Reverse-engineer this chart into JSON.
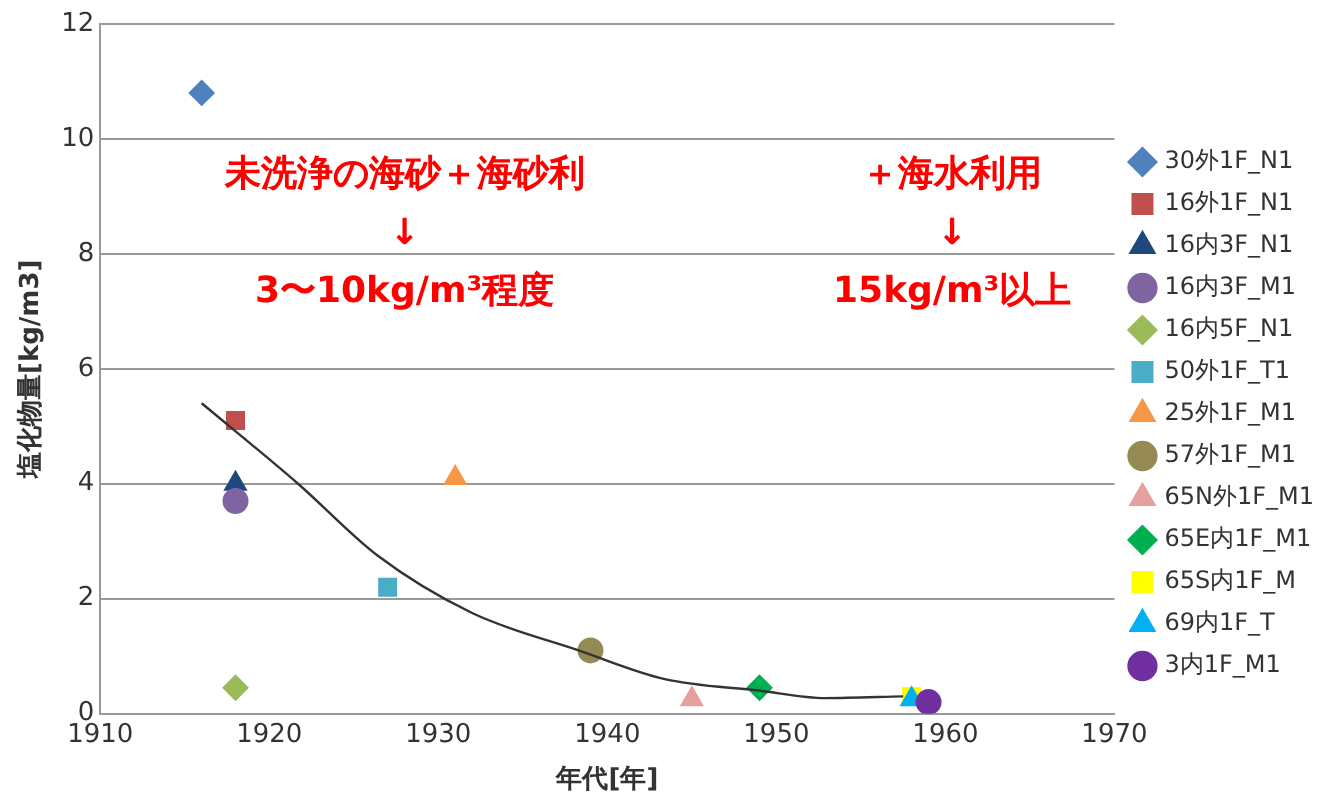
{
  "chart_data": {
    "type": "scatter",
    "xlabel": "年代[年]",
    "ylabel": "塩化物量[kg/m3]",
    "xlim": [
      1910,
      1970
    ],
    "xticks": [
      1910,
      1920,
      1930,
      1940,
      1950,
      1960,
      1970
    ],
    "ylim": [
      0,
      12
    ],
    "yticks": [
      0,
      2,
      4,
      6,
      8,
      10,
      12
    ],
    "grid": "y",
    "legend": "right",
    "annotations": [
      "未洗浄の海砂＋海砂利",
      "↓",
      "3〜10kg/m³程度",
      "＋海水利用",
      "↓",
      "15kg/m³以上"
    ],
    "series": [
      {
        "name": "30外1F_N1",
        "color": "#4f81bd",
        "marker": "diamond",
        "x": [
          1916
        ],
        "values": [
          10.8
        ]
      },
      {
        "name": "16外1F_N1",
        "color": "#c0504d",
        "marker": "square",
        "x": [
          1918
        ],
        "values": [
          5.1
        ]
      },
      {
        "name": "16内3F_N1",
        "color": "#1f497d",
        "marker": "triangle",
        "x": [
          1918
        ],
        "values": [
          4.0
        ]
      },
      {
        "name": "16内3F_M1",
        "color": "#8064a2",
        "marker": "circle",
        "x": [
          1918
        ],
        "values": [
          3.7
        ]
      },
      {
        "name": "16内5F_N1",
        "color": "#9bbb59",
        "marker": "diamond",
        "x": [
          1918
        ],
        "values": [
          0.45
        ]
      },
      {
        "name": "50外1F_T1",
        "color": "#4bacc6",
        "marker": "square",
        "x": [
          1927
        ],
        "values": [
          2.2
        ]
      },
      {
        "name": "25外1F_M1",
        "color": "#f79646",
        "marker": "triangle",
        "x": [
          1931
        ],
        "values": [
          4.1
        ]
      },
      {
        "name": "57外1F_M1",
        "color": "#948a54",
        "marker": "circle",
        "x": [
          1939
        ],
        "values": [
          1.1
        ]
      },
      {
        "name": "65N外1F_M1",
        "color": "#e6a0a0",
        "marker": "triangle",
        "x": [
          1945
        ],
        "values": [
          0.25
        ]
      },
      {
        "name": "65E内1F_M1",
        "color": "#00b050",
        "marker": "diamond",
        "x": [
          1949
        ],
        "values": [
          0.45
        ]
      },
      {
        "name": "65S内1F_M",
        "color": "#ffff00",
        "marker": "square",
        "x": [
          1958
        ],
        "values": [
          0.3
        ]
      },
      {
        "name": "69内1F_T",
        "color": "#00b0f0",
        "marker": "triangle",
        "x": [
          1958
        ],
        "values": [
          0.25
        ]
      },
      {
        "name": "3内1F_M1",
        "color": "#7030a0",
        "marker": "circle",
        "x": [
          1959
        ],
        "values": [
          0.2
        ]
      },
      {
        "type": "line",
        "color": "#333333",
        "marker": "none",
        "x": [
          1916,
          1921.7,
          1926.4,
          1932,
          1938.3,
          1943.4,
          1949,
          1952.9,
          1957.5
        ],
        "values": [
          5.4,
          4.0,
          2.75,
          1.75,
          1.1,
          0.6,
          0.4,
          0.27,
          0.3
        ]
      }
    ]
  }
}
